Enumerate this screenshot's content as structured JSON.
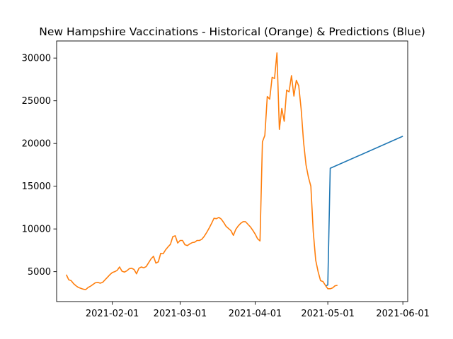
{
  "chart_data": {
    "type": "line",
    "title": "New Hampshire Vaccinations - Historical (Orange) & Predictions (Blue)",
    "xlabel": "",
    "ylabel": "",
    "x_type": "date",
    "xlim": [
      "2021-01-09",
      "2021-06-03"
    ],
    "ylim": [
      1500,
      32000
    ],
    "grid": false,
    "legend": "none",
    "x_ticks": [
      "2021-02-01",
      "2021-03-01",
      "2021-04-01",
      "2021-05-01",
      "2021-06-01"
    ],
    "y_ticks": [
      5000,
      10000,
      15000,
      20000,
      25000,
      30000
    ],
    "colors": {
      "historical": "#ff7f0e",
      "prediction": "#1f77b4",
      "axes": "#000000"
    },
    "series": [
      {
        "color": "#1f77b4",
        "points": [
          [
            "2021-04-30",
            3300
          ],
          [
            "2021-05-01",
            3450
          ],
          [
            "2021-05-02",
            17100
          ],
          [
            "2021-06-01",
            20850
          ]
        ]
      },
      {
        "color": "#ff7f0e",
        "points": [
          [
            "2021-01-13",
            4650
          ],
          [
            "2021-01-14",
            4050
          ],
          [
            "2021-01-15",
            3950
          ],
          [
            "2021-01-16",
            3600
          ],
          [
            "2021-01-17",
            3350
          ],
          [
            "2021-01-18",
            3150
          ],
          [
            "2021-01-19",
            3050
          ],
          [
            "2021-01-20",
            2950
          ],
          [
            "2021-01-21",
            2900
          ],
          [
            "2021-01-22",
            3150
          ],
          [
            "2021-01-23",
            3300
          ],
          [
            "2021-01-24",
            3500
          ],
          [
            "2021-01-25",
            3700
          ],
          [
            "2021-01-26",
            3750
          ],
          [
            "2021-01-27",
            3650
          ],
          [
            "2021-01-28",
            3750
          ],
          [
            "2021-01-29",
            4050
          ],
          [
            "2021-01-30",
            4350
          ],
          [
            "2021-01-31",
            4650
          ],
          [
            "2021-02-01",
            4900
          ],
          [
            "2021-02-02",
            5000
          ],
          [
            "2021-02-03",
            5150
          ],
          [
            "2021-02-04",
            5550
          ],
          [
            "2021-02-05",
            5050
          ],
          [
            "2021-02-06",
            4950
          ],
          [
            "2021-02-07",
            5100
          ],
          [
            "2021-02-08",
            5350
          ],
          [
            "2021-02-09",
            5400
          ],
          [
            "2021-02-10",
            5250
          ],
          [
            "2021-02-11",
            4750
          ],
          [
            "2021-02-12",
            5400
          ],
          [
            "2021-02-13",
            5550
          ],
          [
            "2021-02-14",
            5450
          ],
          [
            "2021-02-15",
            5600
          ],
          [
            "2021-02-16",
            6050
          ],
          [
            "2021-02-17",
            6500
          ],
          [
            "2021-02-18",
            6800
          ],
          [
            "2021-02-19",
            6000
          ],
          [
            "2021-02-20",
            6150
          ],
          [
            "2021-02-21",
            7150
          ],
          [
            "2021-02-22",
            7100
          ],
          [
            "2021-02-23",
            7550
          ],
          [
            "2021-02-24",
            7900
          ],
          [
            "2021-02-25",
            8200
          ],
          [
            "2021-02-26",
            9100
          ],
          [
            "2021-02-27",
            9200
          ],
          [
            "2021-02-28",
            8350
          ],
          [
            "2021-03-01",
            8650
          ],
          [
            "2021-03-02",
            8650
          ],
          [
            "2021-03-03",
            8150
          ],
          [
            "2021-03-04",
            8050
          ],
          [
            "2021-03-05",
            8250
          ],
          [
            "2021-03-06",
            8400
          ],
          [
            "2021-03-07",
            8450
          ],
          [
            "2021-03-08",
            8650
          ],
          [
            "2021-03-09",
            8650
          ],
          [
            "2021-03-10",
            8800
          ],
          [
            "2021-03-11",
            9150
          ],
          [
            "2021-03-12",
            9600
          ],
          [
            "2021-03-13",
            10100
          ],
          [
            "2021-03-14",
            10650
          ],
          [
            "2021-03-15",
            11250
          ],
          [
            "2021-03-16",
            11200
          ],
          [
            "2021-03-17",
            11350
          ],
          [
            "2021-03-18",
            11150
          ],
          [
            "2021-03-19",
            10750
          ],
          [
            "2021-03-20",
            10300
          ],
          [
            "2021-03-21",
            10050
          ],
          [
            "2021-03-22",
            9800
          ],
          [
            "2021-03-23",
            9250
          ],
          [
            "2021-03-24",
            9950
          ],
          [
            "2021-03-25",
            10350
          ],
          [
            "2021-03-26",
            10650
          ],
          [
            "2021-03-27",
            10850
          ],
          [
            "2021-03-28",
            10850
          ],
          [
            "2021-03-29",
            10550
          ],
          [
            "2021-03-30",
            10250
          ],
          [
            "2021-03-31",
            9850
          ],
          [
            "2021-04-01",
            9400
          ],
          [
            "2021-04-02",
            8850
          ],
          [
            "2021-04-03",
            8600
          ],
          [
            "2021-04-04",
            20200
          ],
          [
            "2021-04-05",
            20950
          ],
          [
            "2021-04-06",
            25500
          ],
          [
            "2021-04-07",
            25200
          ],
          [
            "2021-04-08",
            27750
          ],
          [
            "2021-04-09",
            27600
          ],
          [
            "2021-04-10",
            30600
          ],
          [
            "2021-04-11",
            21650
          ],
          [
            "2021-04-12",
            24100
          ],
          [
            "2021-04-13",
            22600
          ],
          [
            "2021-04-14",
            26250
          ],
          [
            "2021-04-15",
            26050
          ],
          [
            "2021-04-16",
            27950
          ],
          [
            "2021-04-17",
            25550
          ],
          [
            "2021-04-18",
            27400
          ],
          [
            "2021-04-19",
            26750
          ],
          [
            "2021-04-20",
            24000
          ],
          [
            "2021-04-21",
            20150
          ],
          [
            "2021-04-22",
            17500
          ],
          [
            "2021-04-23",
            16050
          ],
          [
            "2021-04-24",
            15000
          ],
          [
            "2021-04-25",
            9650
          ],
          [
            "2021-04-26",
            6350
          ],
          [
            "2021-04-27",
            5000
          ],
          [
            "2021-04-28",
            3950
          ],
          [
            "2021-04-29",
            3850
          ],
          [
            "2021-04-30",
            3400
          ],
          [
            "2021-05-01",
            3000
          ],
          [
            "2021-05-02",
            3000
          ],
          [
            "2021-05-03",
            3100
          ],
          [
            "2021-05-04",
            3350
          ],
          [
            "2021-05-05",
            3400
          ]
        ]
      }
    ]
  }
}
